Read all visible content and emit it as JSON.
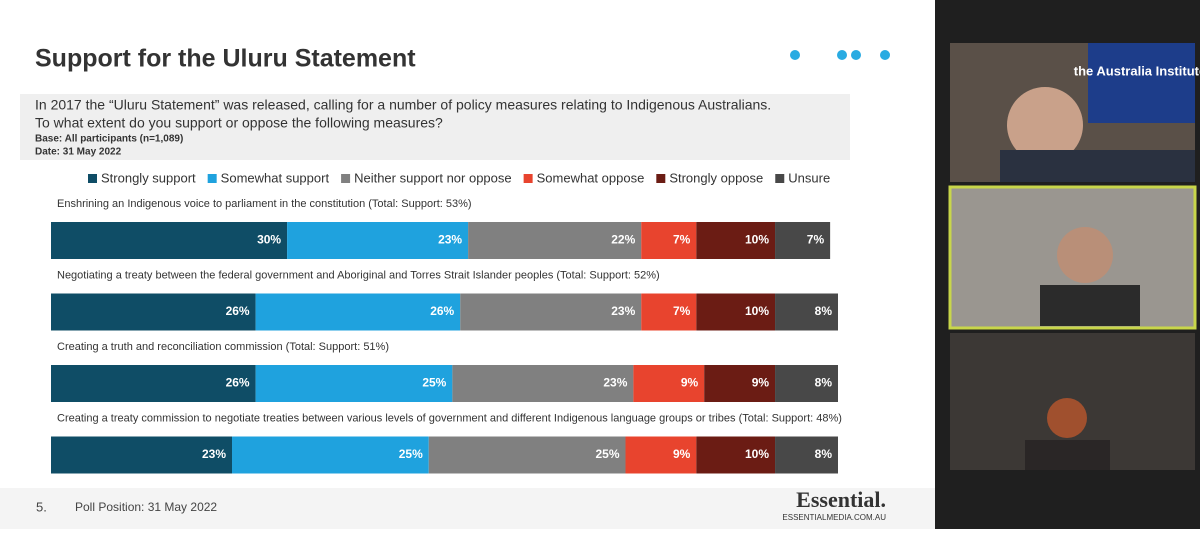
{
  "slide": {
    "title": "Support for the Uluru Statement",
    "question": [
      "In 2017 the “Uluru Statement” was released, calling for a number of policy measures relating to Indigenous Australians.",
      "To what extent do you support or oppose the following measures?"
    ],
    "base": "Base: All participants (n=1,089)",
    "date": "Date: 31 May 2022",
    "page_number": "5.",
    "footer": "Poll Position: 31 May 2022",
    "logo": "Essential.",
    "logo_url": "ESSENTIALMEDIA.COM.AU"
  },
  "video": {
    "banner": "the Australia Institute"
  },
  "chart_data": {
    "type": "stacked_barh",
    "categories": [
      "Enshrining an Indigenous voice to parliament in the constitution (Total: Support: 53%)",
      "Negotiating a treaty between the federal government and Aboriginal and Torres Strait Islander peoples (Total: Support: 52%)",
      "Creating a truth and reconciliation commission (Total: Support: 51%)",
      "Creating a treaty commission to negotiate treaties between various levels of government and different Indigenous language groups or tribes (Total: Support: 48%)"
    ],
    "xlim": [
      0,
      100
    ],
    "series": [
      {
        "name": "Strongly support",
        "color": "#0f4d66",
        "values": [
          30,
          26,
          26,
          23
        ],
        "value_labels": [
          "30%",
          "26%",
          "26%",
          "23%"
        ]
      },
      {
        "name": "Somewhat support",
        "color": "#1fa2de",
        "values": [
          23,
          26,
          25,
          25
        ],
        "value_labels": [
          "23%",
          "26%",
          "25%",
          "25%"
        ]
      },
      {
        "name": "Neither support nor oppose",
        "color": "#808080",
        "values": [
          22,
          23,
          23,
          25
        ],
        "value_labels": [
          "22%",
          "23%",
          "23%",
          "25%"
        ]
      },
      {
        "name": "Somewhat oppose",
        "color": "#e8442e",
        "values": [
          7,
          7,
          9,
          9
        ],
        "value_labels": [
          "7%",
          "7%",
          "9%",
          "9%"
        ]
      },
      {
        "name": "Strongly oppose",
        "color": "#6b1c14",
        "values": [
          10,
          10,
          9,
          10
        ],
        "value_labels": [
          "10%",
          "10%",
          "9%",
          "10%"
        ]
      },
      {
        "name": "Unsure",
        "color": "#484848",
        "values": [
          7,
          8,
          8,
          8
        ],
        "value_labels": [
          "7%",
          "8%",
          "8%",
          "8%"
        ]
      }
    ]
  }
}
